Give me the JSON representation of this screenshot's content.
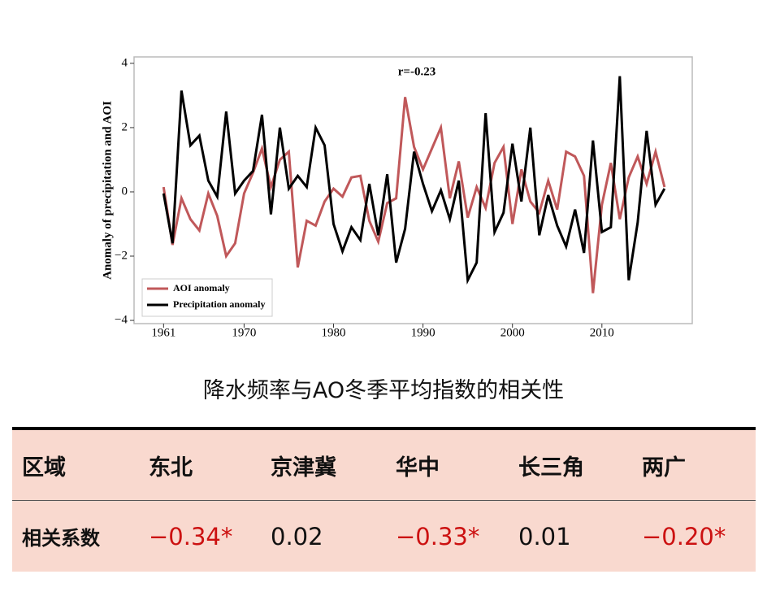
{
  "chart_data": {
    "type": "line",
    "annotation": "r=-0.23",
    "ylabel": "Anomaly of precipitation and AOI",
    "x": [
      1961,
      1962,
      1963,
      1964,
      1965,
      1966,
      1967,
      1968,
      1969,
      1970,
      1971,
      1972,
      1973,
      1974,
      1975,
      1976,
      1977,
      1978,
      1979,
      1980,
      1981,
      1982,
      1983,
      1984,
      1985,
      1986,
      1987,
      1988,
      1989,
      1990,
      1991,
      1992,
      1993,
      1994,
      1995,
      1996,
      1997,
      1998,
      1999,
      2000,
      2001,
      2002,
      2003,
      2004,
      2005,
      2006,
      2007,
      2008,
      2009,
      2010,
      2011,
      2012,
      2013,
      2014,
      2015,
      2016,
      2017
    ],
    "series": [
      {
        "name": "AOI anomaly",
        "color": "#c0585a",
        "values": [
          0.15,
          -1.65,
          -0.2,
          -0.85,
          -1.2,
          -0.05,
          -0.75,
          -2.0,
          -1.6,
          -0.05,
          0.6,
          1.35,
          0.15,
          1.0,
          1.25,
          -2.35,
          -0.9,
          -1.05,
          -0.3,
          0.1,
          -0.15,
          0.45,
          0.5,
          -0.9,
          -1.55,
          -0.35,
          -0.2,
          2.95,
          1.4,
          0.7,
          1.35,
          2.0,
          -0.2,
          0.95,
          -0.8,
          0.15,
          -0.5,
          0.9,
          1.4,
          -1.0,
          0.7,
          -0.3,
          -0.65,
          0.35,
          -0.55,
          1.25,
          1.1,
          0.5,
          -3.15,
          -0.4,
          0.9,
          -0.85,
          0.45,
          1.1,
          0.25,
          1.25,
          0.15
        ]
      },
      {
        "name": "Precipitation anomaly",
        "color": "#000000",
        "values": [
          -0.05,
          -1.6,
          3.15,
          1.45,
          1.75,
          0.35,
          -0.15,
          2.5,
          -0.05,
          0.35,
          0.65,
          2.4,
          -0.7,
          2.0,
          0.1,
          0.5,
          0.15,
          2.0,
          1.45,
          -1.0,
          -1.85,
          -1.1,
          -1.5,
          0.25,
          -1.35,
          0.55,
          -2.2,
          -1.15,
          1.25,
          0.25,
          -0.6,
          0.05,
          -0.85,
          0.35,
          -2.75,
          -2.2,
          2.45,
          -1.25,
          -0.65,
          1.5,
          -0.3,
          2.0,
          -1.35,
          -0.1,
          -1.05,
          -1.7,
          -0.55,
          -1.9,
          1.6,
          -1.25,
          -1.1,
          3.6,
          -2.75,
          -0.95,
          1.9,
          -0.4,
          0.1
        ]
      }
    ],
    "xlim": [
      1957.7,
      2020.1
    ],
    "ylim": [
      -4.1,
      4.2
    ],
    "xticks": [
      1961,
      1970,
      1980,
      1990,
      2000,
      2010
    ],
    "yticks": [
      4,
      2,
      0,
      {
        "value": -2,
        "label": "−2"
      },
      {
        "value": -4,
        "label": "−4"
      }
    ],
    "legend": "lower left",
    "grid": false
  },
  "caption": "降水频率与AO冬季平均指数的相关性",
  "table": {
    "columns": [
      "区域",
      "东北",
      "京津冀",
      "华中",
      "长三角",
      "两广"
    ],
    "rows": [
      [
        "相关系数",
        "−0.34*",
        "0.02",
        "−0.33*",
        "0.01",
        "−0.20*"
      ]
    ],
    "cell_colors": [
      [
        "#111111",
        "#cc1111",
        "#111111",
        "#cc1111",
        "#111111",
        "#cc1111"
      ]
    ],
    "background": "#f9d9cf"
  }
}
